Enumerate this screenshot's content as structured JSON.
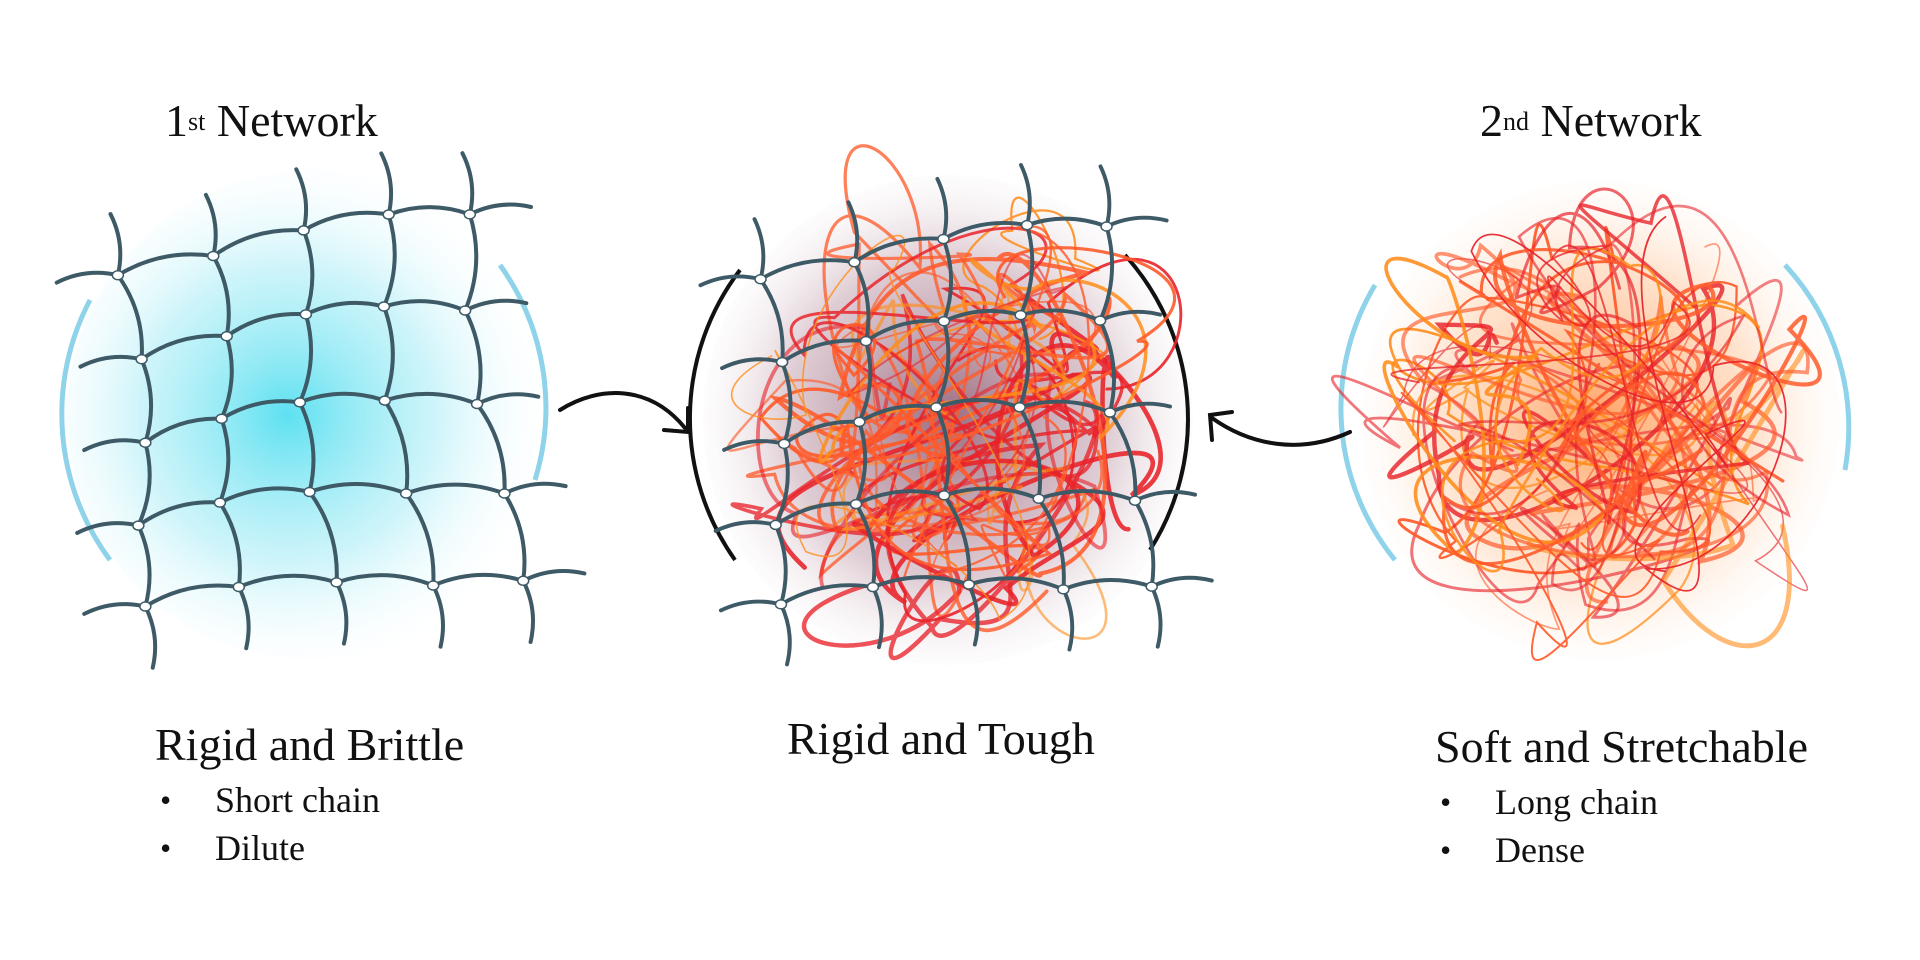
{
  "first_network": {
    "title_prefix": "1",
    "title_sup": "st",
    "title_rest": " Network",
    "property": "Rigid and Brittle",
    "bullets": [
      "Short chain",
      "Dilute"
    ]
  },
  "double_network": {
    "property": "Rigid and Tough"
  },
  "second_network": {
    "title_prefix": "2",
    "title_sup": "nd",
    "title_rest": " Network",
    "property": "Soft and Stretchable",
    "bullets": [
      "Long chain",
      "Dense"
    ]
  },
  "colors": {
    "first_glow": "#55dff0",
    "first_rim": "#8fd3ea",
    "mesh_strand": "#3d5a66",
    "second_glow": "#ff9a55",
    "second_rim": "#8fd3ea",
    "coil_red": "#e8232a",
    "coil_orange": "#ff5a2a",
    "coil_amber": "#ff8c1a",
    "combined_glow": "#7a3b55",
    "arrow": "#111111"
  }
}
